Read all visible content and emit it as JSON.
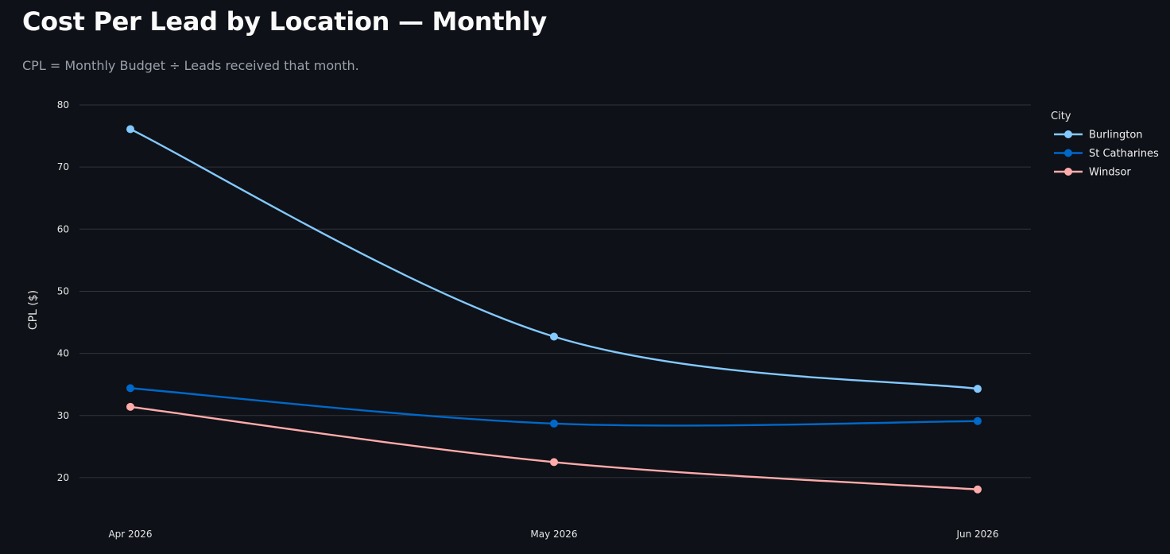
{
  "header": {
    "title": "Cost Per Lead by Location — Monthly",
    "subtitle": "CPL = Monthly Budget ÷ Leads received that month."
  },
  "colors": {
    "background": "#0e1117",
    "grid": "#31343b",
    "Burlington": "#83c9ff",
    "St Catharines": "#0068c9",
    "Windsor": "#ffabab"
  },
  "chart_data": {
    "type": "line",
    "title": "",
    "xlabel": "",
    "ylabel": "CPL ($)",
    "x": [
      "Apr 2026",
      "May 2026",
      "Jun 2026"
    ],
    "ylim": [
      15,
      80
    ],
    "yticks": [
      20,
      30,
      40,
      50,
      60,
      70,
      80
    ],
    "grid": true,
    "line_shape": "spline",
    "markers": true,
    "legend": {
      "title": "City",
      "placement": "right"
    },
    "series": [
      {
        "name": "Burlington",
        "values": [
          76.1,
          42.7,
          34.3
        ]
      },
      {
        "name": "St Catharines",
        "values": [
          34.4,
          28.7,
          29.1
        ]
      },
      {
        "name": "Windsor",
        "values": [
          31.4,
          22.5,
          18.1
        ]
      }
    ]
  }
}
